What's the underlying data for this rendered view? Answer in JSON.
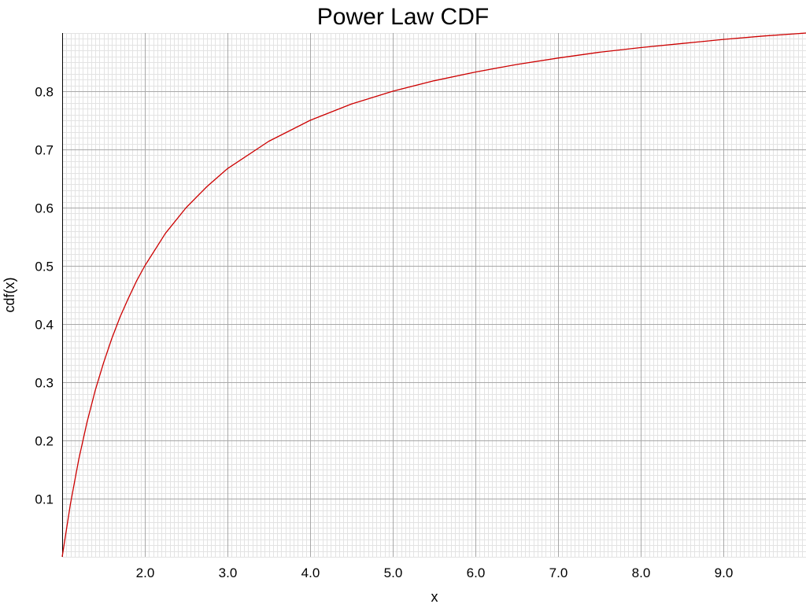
{
  "chart_data": {
    "type": "line",
    "title": "Power Law CDF",
    "xlabel": "x",
    "ylabel": "cdf(x)",
    "xlim": [
      1.0,
      10.0
    ],
    "ylim": [
      0.0,
      0.9
    ],
    "x_ticks": [
      2.0,
      3.0,
      4.0,
      5.0,
      6.0,
      7.0,
      8.0,
      9.0
    ],
    "x_tick_labels": [
      "2.0",
      "3.0",
      "4.0",
      "5.0",
      "6.0",
      "7.0",
      "8.0",
      "9.0"
    ],
    "y_ticks": [
      0.1,
      0.2,
      0.3,
      0.4,
      0.5,
      0.6,
      0.7,
      0.8
    ],
    "y_tick_labels": [
      "0.1",
      "0.2",
      "0.3",
      "0.4",
      "0.5",
      "0.6",
      "0.7",
      "0.8"
    ],
    "grid": true,
    "minor_grid": true,
    "series": [
      {
        "color": "#cc0000",
        "x": [
          1.0,
          1.1,
          1.2,
          1.3,
          1.4,
          1.5,
          1.6,
          1.7,
          1.8,
          1.9,
          2.0,
          2.25,
          2.5,
          2.75,
          3.0,
          3.5,
          4.0,
          4.5,
          5.0,
          5.5,
          6.0,
          6.5,
          7.0,
          7.5,
          8.0,
          8.5,
          9.0,
          9.5,
          10.0
        ],
        "y": [
          0.0,
          0.091,
          0.167,
          0.231,
          0.286,
          0.333,
          0.375,
          0.412,
          0.444,
          0.474,
          0.5,
          0.556,
          0.6,
          0.636,
          0.667,
          0.714,
          0.75,
          0.778,
          0.8,
          0.818,
          0.833,
          0.846,
          0.857,
          0.867,
          0.875,
          0.882,
          0.889,
          0.895,
          0.9
        ]
      }
    ]
  }
}
